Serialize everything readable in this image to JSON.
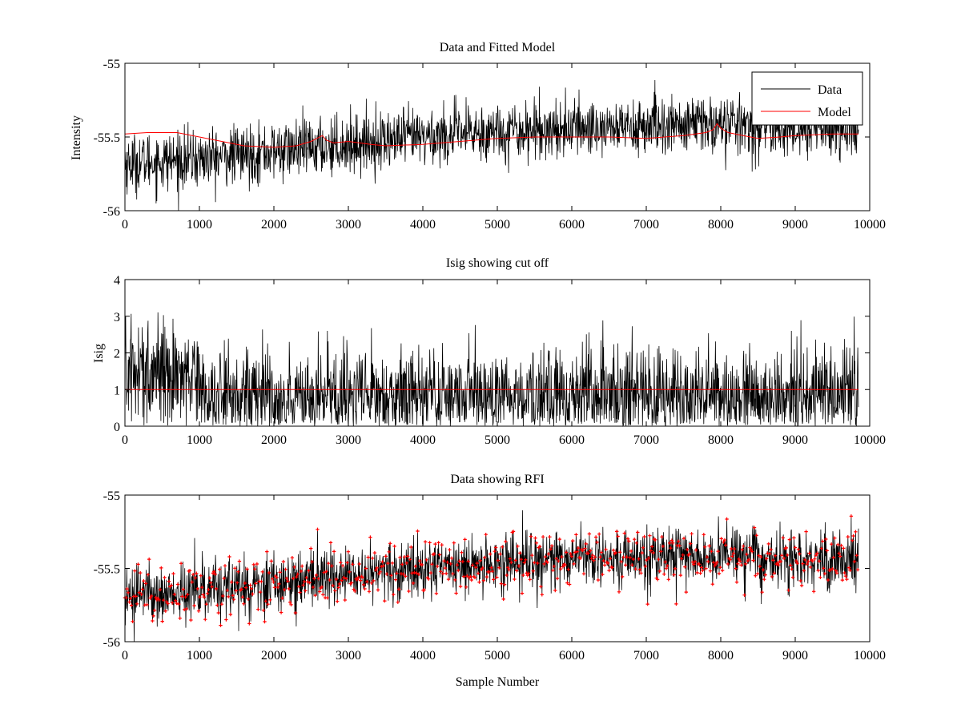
{
  "chart_data": [
    {
      "type": "line",
      "title": "Data and Fitted Model",
      "xlabel": "",
      "ylabel": "Intensity",
      "xlim": [
        0,
        10000
      ],
      "ylim": [
        -56,
        -55
      ],
      "xticks": [
        0,
        1000,
        2000,
        3000,
        4000,
        5000,
        6000,
        7000,
        8000,
        9000,
        10000
      ],
      "yticks": [
        -56,
        -55.5,
        -55
      ],
      "ytick_labels": [
        "-56",
        "-55.5",
        "-55"
      ],
      "grid": false,
      "legend": {
        "position": "top-right"
      },
      "series": [
        {
          "name": "Data",
          "color": "#000000",
          "style": "noisy-line",
          "x": [
            0,
            1000,
            2000,
            3000,
            4000,
            5000,
            6000,
            7000,
            8000,
            9000,
            9850
          ],
          "values": [
            -55.68,
            -55.65,
            -55.6,
            -55.55,
            -55.5,
            -55.46,
            -55.44,
            -55.43,
            -55.41,
            -55.44,
            -55.44
          ],
          "spread": 0.11
        },
        {
          "name": "Model",
          "color": "#ff0000",
          "style": "line",
          "x": [
            0,
            300,
            700,
            1000,
            1300,
            1600,
            2000,
            2300,
            2500,
            2650,
            2700,
            2800,
            3000,
            3300,
            3500,
            4000,
            4500,
            5000,
            5500,
            6000,
            6500,
            7000,
            7500,
            7800,
            7900,
            7950,
            8000,
            8100,
            8300,
            8500,
            8800,
            9000,
            9500,
            9850
          ],
          "values": [
            -55.48,
            -55.47,
            -55.47,
            -55.5,
            -55.53,
            -55.56,
            -55.57,
            -55.56,
            -55.53,
            -55.49,
            -55.52,
            -55.54,
            -55.53,
            -55.55,
            -55.56,
            -55.55,
            -55.53,
            -55.51,
            -55.5,
            -55.5,
            -55.5,
            -55.51,
            -55.49,
            -55.47,
            -55.45,
            -55.41,
            -55.44,
            -55.47,
            -55.49,
            -55.51,
            -55.5,
            -55.49,
            -55.48,
            -55.48
          ]
        }
      ]
    },
    {
      "type": "line",
      "title": "Isig showing cut off",
      "xlabel": "",
      "ylabel": "Isig",
      "xlim": [
        0,
        10000
      ],
      "ylim": [
        0,
        4
      ],
      "xticks": [
        0,
        1000,
        2000,
        3000,
        4000,
        5000,
        6000,
        7000,
        8000,
        9000,
        10000
      ],
      "yticks": [
        0,
        1,
        2,
        3,
        4
      ],
      "grid": false,
      "series": [
        {
          "color": "#000000",
          "style": "noisy-line",
          "x": [
            0,
            1000,
            1050,
            9850
          ],
          "values": [
            1.5,
            1.5,
            0.8,
            0.8
          ],
          "spread": 0.75
        },
        {
          "color": "#ff0000",
          "style": "line",
          "x": [
            0,
            9850
          ],
          "values": [
            1,
            1
          ]
        }
      ]
    },
    {
      "type": "line",
      "title": "Data showing RFI",
      "xlabel": "Sample Number",
      "ylabel": "",
      "xlim": [
        0,
        10000
      ],
      "ylim": [
        -56,
        -55
      ],
      "xticks": [
        0,
        1000,
        2000,
        3000,
        4000,
        5000,
        6000,
        7000,
        8000,
        9000,
        10000
      ],
      "yticks": [
        -56,
        -55.5,
        -55
      ],
      "ytick_labels": [
        "-56",
        "-55.5",
        "-55"
      ],
      "grid": false,
      "series": [
        {
          "color": "#000000",
          "style": "noisy-line",
          "x": [
            0,
            1000,
            2000,
            3000,
            4000,
            5000,
            6000,
            7000,
            8000,
            9000,
            9850
          ],
          "values": [
            -55.68,
            -55.65,
            -55.6,
            -55.55,
            -55.5,
            -55.46,
            -55.44,
            -55.43,
            -55.41,
            -55.44,
            -55.44
          ],
          "spread": 0.11
        },
        {
          "color": "#ff0000",
          "style": "markers",
          "marker": "plus",
          "x": [
            0,
            1000,
            2000,
            3000,
            4000,
            5000,
            6000,
            7000,
            8000,
            9000,
            9850
          ],
          "values": [
            -55.68,
            -55.65,
            -55.6,
            -55.55,
            -55.5,
            -55.46,
            -55.44,
            -55.43,
            -55.41,
            -55.44,
            -55.44
          ],
          "spread": 0.11
        }
      ]
    }
  ]
}
